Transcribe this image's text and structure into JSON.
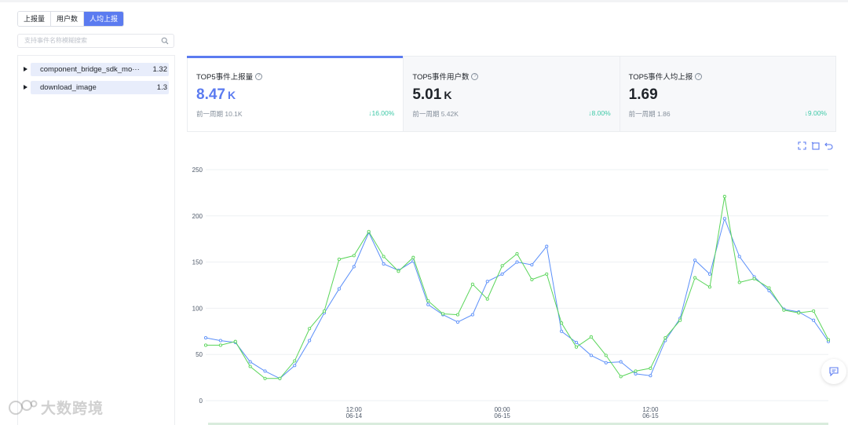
{
  "tabs": [
    {
      "label": "上报量",
      "active": false
    },
    {
      "label": "用户数",
      "active": false
    },
    {
      "label": "人均上报",
      "active": true
    }
  ],
  "search": {
    "placeholder": "支持事件名称模糊搜索",
    "icon": "search-icon"
  },
  "event_list": [
    {
      "name": "component_bridge_sdk_mo···",
      "value": "1.32"
    },
    {
      "name": "download_image",
      "value": "1.3"
    }
  ],
  "cards": [
    {
      "title": "TOP5事件上报量",
      "value": "8.47",
      "unit": "K",
      "prev": "前一周期 10.1K",
      "delta": "16.00%",
      "direction": "down"
    },
    {
      "title": "TOP5事件用户数",
      "value": "5.01",
      "unit": "K",
      "prev": "前一周期 5.42K",
      "delta": "8.00%",
      "direction": "down"
    },
    {
      "title": "TOP5事件人均上报",
      "value": "1.69",
      "unit": "",
      "prev": "前一周期 1.86",
      "delta": "9.00%",
      "direction": "down"
    }
  ],
  "toolbar_icons": [
    "zoom-select-icon",
    "zoom-reset-icon",
    "undo-icon"
  ],
  "colors": {
    "accent": "#5b7bf0",
    "series_blue": "#5b8ff9",
    "series_green": "#5ad55a",
    "delta_green": "#3ec9a7"
  },
  "chart_data": {
    "type": "line",
    "ylim": [
      0,
      250
    ],
    "y_ticks": [
      0,
      50,
      100,
      150,
      200,
      250
    ],
    "x_ticks": [
      {
        "index": 10,
        "time": "12:00",
        "date": "06-14"
      },
      {
        "index": 20,
        "time": "00:00",
        "date": "06-15"
      },
      {
        "index": 30,
        "time": "12:00",
        "date": "06-15"
      }
    ],
    "series": [
      {
        "color": "#5b8ff9",
        "values": [
          68,
          65,
          63,
          42,
          32,
          24,
          38,
          65,
          95,
          121,
          145,
          182,
          148,
          141,
          151,
          104,
          93,
          85,
          93,
          129,
          137,
          150,
          147,
          167,
          75,
          63,
          49,
          41,
          42,
          29,
          27,
          65,
          89,
          152,
          137,
          197,
          156,
          134,
          119,
          99,
          96,
          87,
          64
        ]
      },
      {
        "color": "#5ad55a",
        "values": [
          60,
          60,
          64,
          37,
          24,
          24,
          43,
          78,
          97,
          153,
          157,
          183,
          156,
          140,
          155,
          108,
          94,
          93,
          126,
          110,
          146,
          159,
          131,
          137,
          84,
          58,
          69,
          49,
          26,
          32,
          35,
          68,
          87,
          133,
          123,
          221,
          128,
          132,
          122,
          98,
          95,
          97,
          66
        ]
      }
    ]
  },
  "watermark": "大数跨境"
}
